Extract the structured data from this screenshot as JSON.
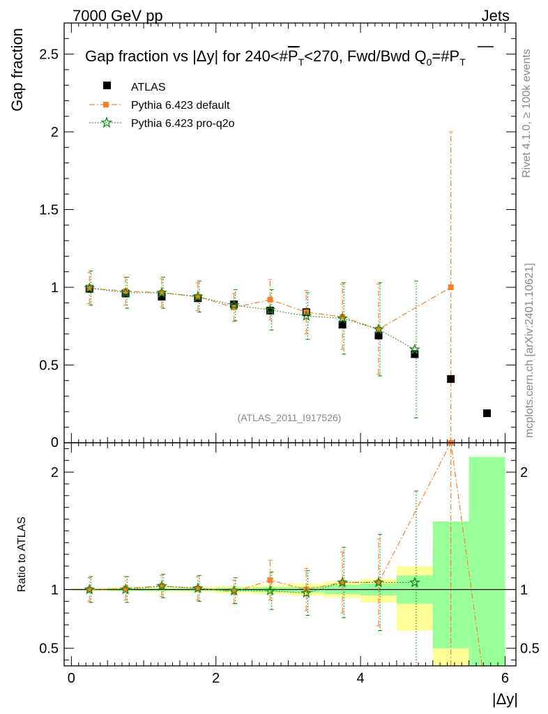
{
  "header": {
    "left": "7000 GeV pp",
    "right": "Jets"
  },
  "side_labels": {
    "rivet": "Rivet 4.1.0, ≥ 100k events",
    "mcplots": "mcplots.cern.ch [arXiv:2401.10621]"
  },
  "analysis_id": "(ATLAS_2011_I917526)",
  "colors": {
    "atlas": "#000000",
    "default": "#f5822a",
    "proq2o": "#108a10",
    "band_yellow": "#ffff99",
    "band_green": "#99ff99"
  },
  "chart_data": [
    {
      "type": "scatter",
      "title": "Gap fraction vs |Δy| for 240<#P̅T<270, Fwd/Bwd Q0=#P̅T",
      "title_parts": {
        "pre": "Gap fraction vs |Δy| for 240<#",
        "pbar": "P",
        "sub": "T",
        "mid": "<270, Fwd/Bwd Q",
        "sub0": "0",
        "eq": "=#",
        "pbar2": "P",
        "sub2": "T"
      },
      "xlabel": "|Δy|",
      "ylabel": "Gap fraction",
      "xlim": [
        -0.1,
        6.15
      ],
      "ylim": [
        0,
        2.7
      ],
      "xticks": [
        0,
        2,
        4,
        6
      ],
      "yticks": [
        0.5,
        1,
        1.5,
        2,
        2.5
      ],
      "ytick_labels": [
        "0.5",
        "1",
        "1.5",
        "2",
        "2.5"
      ],
      "clipped_zero_label": "0",
      "legend": [
        "ATLAS",
        "Pythia 6.423 default",
        "Pythia 6.423 pro-q2o"
      ],
      "series": [
        {
          "name": "ATLAS",
          "marker": "square",
          "x": [
            0.25,
            0.75,
            1.25,
            1.75,
            2.25,
            2.75,
            3.25,
            3.75,
            4.25,
            4.75,
            5.25,
            5.75
          ],
          "y": [
            0.99,
            0.96,
            0.94,
            0.93,
            0.89,
            0.85,
            0.84,
            0.76,
            0.69,
            0.57,
            0.41,
            0.19
          ]
        },
        {
          "name": "Pythia 6.423 default",
          "marker": "filled-square",
          "line": "dashdot",
          "x": [
            0.25,
            0.75,
            1.25,
            1.75,
            2.25,
            2.75,
            3.25,
            3.75,
            4.25,
            5.25
          ],
          "y": [
            0.995,
            0.975,
            0.965,
            0.94,
            0.87,
            0.92,
            0.84,
            0.81,
            0.73,
            1.0
          ],
          "err": [
            0.1,
            0.09,
            0.09,
            0.09,
            0.09,
            0.13,
            0.14,
            0.21,
            0.29,
            1.0
          ]
        },
        {
          "name": "Pythia 6.423 pro-q2o",
          "marker": "star",
          "line": "dotted",
          "x": [
            0.25,
            0.75,
            1.25,
            1.75,
            2.25,
            2.75,
            3.25,
            3.75,
            4.25,
            4.75
          ],
          "y": [
            0.995,
            0.965,
            0.965,
            0.94,
            0.885,
            0.855,
            0.815,
            0.8,
            0.73,
            0.6
          ],
          "err": [
            0.11,
            0.1,
            0.1,
            0.1,
            0.1,
            0.13,
            0.15,
            0.23,
            0.3,
            0.44
          ]
        }
      ]
    },
    {
      "type": "scatter",
      "ylabel": "Ratio to ATLAS",
      "xlim": [
        -0.1,
        6.15
      ],
      "ylim": [
        0.35,
        2.25
      ],
      "yticks": [
        0.5,
        1,
        2
      ],
      "ytick_labels": [
        "0.5",
        "1",
        "2"
      ],
      "xtick_labels": [
        "0",
        "2",
        "4",
        "6"
      ],
      "bands": {
        "x_edges": [
          0,
          0.5,
          1,
          1.5,
          2,
          2.5,
          3,
          3.5,
          4,
          4.5,
          5,
          5.5,
          6
        ],
        "green_lo": [
          0.995,
          0.99,
          0.99,
          0.99,
          0.985,
          0.98,
          0.975,
          0.96,
          0.95,
          0.88,
          0.5,
          0.35
        ],
        "green_hi": [
          1.005,
          1.01,
          1.01,
          1.01,
          1.015,
          1.02,
          1.025,
          1.04,
          1.05,
          1.12,
          1.58,
          2.13
        ],
        "yellow_lo": [
          0.99,
          0.985,
          0.98,
          0.98,
          0.97,
          0.96,
          0.95,
          0.93,
          0.89,
          0.65,
          0.35,
          0.35
        ],
        "yellow_hi": [
          1.01,
          1.02,
          1.02,
          1.02,
          1.03,
          1.04,
          1.05,
          1.07,
          1.09,
          1.2,
          1.4,
          1.99
        ]
      },
      "series": [
        {
          "name": "Pythia 6.423 default",
          "x": [
            0.25,
            0.75,
            1.25,
            1.75,
            2.25,
            2.75,
            3.25,
            3.75,
            4.25,
            5.25,
            5.68
          ],
          "y": [
            1.0,
            1.01,
            1.03,
            1.01,
            0.98,
            1.08,
            1.0,
            1.06,
            1.06,
            2.25,
            0.35
          ],
          "err": [
            0.1,
            0.1,
            0.09,
            0.1,
            0.1,
            0.17,
            0.18,
            0.26,
            0.37,
            0,
            0
          ]
        },
        {
          "name": "Pythia 6.423 pro-q2o",
          "x": [
            0.25,
            0.75,
            1.25,
            1.75,
            2.25,
            2.75,
            3.25,
            3.75,
            4.25,
            4.75
          ],
          "y": [
            1.0,
            1.0,
            1.03,
            1.01,
            0.99,
            0.99,
            0.97,
            1.06,
            1.06,
            1.06
          ],
          "err": [
            0.11,
            0.11,
            0.1,
            0.11,
            0.11,
            0.16,
            0.19,
            0.3,
            0.41,
            0.78
          ]
        }
      ]
    }
  ]
}
